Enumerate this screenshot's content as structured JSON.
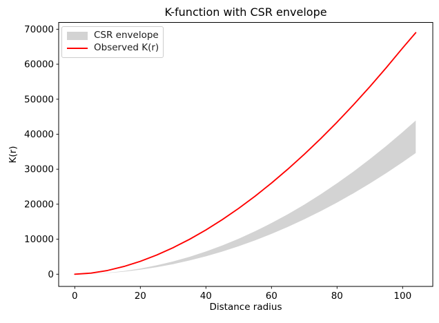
{
  "title": "K-function with CSR envelope",
  "axes": {
    "xlabel": "Distance radius",
    "ylabel": "K(r)",
    "x_ticks": [
      0,
      20,
      40,
      60,
      80,
      100
    ],
    "y_ticks": [
      0,
      10000,
      20000,
      30000,
      40000,
      50000,
      60000,
      70000
    ]
  },
  "legend": {
    "items": [
      {
        "label": "CSR envelope",
        "swatch": "patch",
        "color": "#d3d3d3"
      },
      {
        "label": "Observed K(r)",
        "swatch": "line",
        "color": "#ff0000"
      }
    ]
  },
  "colors": {
    "observed_line": "#ff0000",
    "envelope_fill": "#d3d3d3",
    "spine": "#000000",
    "background": "#ffffff"
  },
  "chart_data": {
    "type": "line",
    "title": "K-function with CSR envelope",
    "xlabel": "Distance radius",
    "ylabel": "K(r)",
    "xlim": [
      -4.91,
      109.2
    ],
    "ylim": [
      -3490,
      71940
    ],
    "grid": false,
    "legend_position": "upper left",
    "x": [
      0,
      5,
      10,
      15,
      20,
      25,
      30,
      35,
      40,
      45,
      50,
      55,
      60,
      65,
      70,
      75,
      80,
      85,
      90,
      95,
      100,
      104
    ],
    "series": [
      {
        "name": "Observed K(r)",
        "type": "line",
        "color": "#ff0000",
        "values": [
          0,
          310,
          1070,
          2210,
          3680,
          5480,
          7580,
          9970,
          12650,
          15600,
          18820,
          22300,
          26040,
          30030,
          34260,
          38730,
          43440,
          48400,
          53580,
          59000,
          64630,
          69000
        ]
      },
      {
        "name": "CSR envelope lower",
        "type": "band-lower",
        "color": "#d3d3d3",
        "values": [
          0,
          80,
          320,
          720,
          1280,
          2000,
          2880,
          3920,
          5120,
          6480,
          8000,
          9680,
          11520,
          13520,
          15680,
          18000,
          20480,
          23120,
          25920,
          28880,
          32000,
          34610
        ]
      },
      {
        "name": "CSR envelope upper",
        "type": "band-upper",
        "color": "#d3d3d3",
        "values": [
          0,
          100,
          410,
          910,
          1620,
          2540,
          3650,
          4970,
          6500,
          8220,
          10150,
          12280,
          14620,
          17150,
          19890,
          22840,
          25980,
          29330,
          32890,
          36640,
          40600,
          43910
        ]
      }
    ]
  }
}
